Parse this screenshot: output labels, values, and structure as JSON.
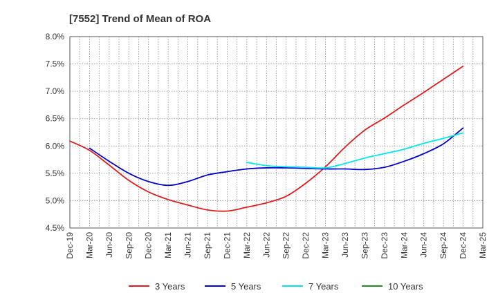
{
  "chart_data": {
    "type": "line",
    "title": "[7552]  Trend of Mean of ROA",
    "xlabel": "",
    "ylabel": "",
    "x_ticks": [
      "Dec-19",
      "Mar-20",
      "Jun-20",
      "Sep-20",
      "Dec-20",
      "Mar-21",
      "Jun-21",
      "Sep-21",
      "Dec-21",
      "Mar-22",
      "Jun-22",
      "Sep-22",
      "Dec-22",
      "Mar-23",
      "Jun-23",
      "Sep-23",
      "Dec-23",
      "Mar-24",
      "Jun-24",
      "Sep-24",
      "Dec-24",
      "Mar-25"
    ],
    "y_ticks": [
      "4.5%",
      "5.0%",
      "5.5%",
      "6.0%",
      "6.5%",
      "7.0%",
      "7.5%",
      "8.0%"
    ],
    "ylim": [
      4.5,
      8.0
    ],
    "grid": true,
    "legend_position": "bottom",
    "series": [
      {
        "name": "3 Years",
        "color": "#e41a1c",
        "values": [
          6.09,
          5.92,
          5.65,
          5.37,
          5.16,
          5.02,
          4.92,
          4.83,
          4.81,
          4.88,
          4.96,
          5.08,
          5.32,
          5.62,
          5.98,
          6.29,
          6.51,
          6.75,
          6.98,
          7.22,
          7.46,
          null
        ]
      },
      {
        "name": "5 Years",
        "color": "#0000cc",
        "values": [
          null,
          5.96,
          5.72,
          5.5,
          5.35,
          5.28,
          5.35,
          5.47,
          5.53,
          5.58,
          5.6,
          5.6,
          5.59,
          5.58,
          5.58,
          5.57,
          5.61,
          5.72,
          5.86,
          6.04,
          6.33,
          null
        ]
      },
      {
        "name": "7 Years",
        "color": "#00e5ee",
        "values": [
          null,
          null,
          null,
          null,
          null,
          null,
          null,
          null,
          null,
          5.7,
          5.64,
          5.62,
          5.61,
          5.6,
          5.68,
          5.78,
          5.86,
          5.94,
          6.05,
          6.14,
          6.24,
          null
        ]
      },
      {
        "name": "10 Years",
        "color": "#228b22",
        "values": [
          null,
          null,
          null,
          null,
          null,
          null,
          null,
          null,
          null,
          null,
          null,
          null,
          null,
          null,
          null,
          null,
          null,
          null,
          null,
          null,
          null,
          null
        ]
      }
    ]
  }
}
